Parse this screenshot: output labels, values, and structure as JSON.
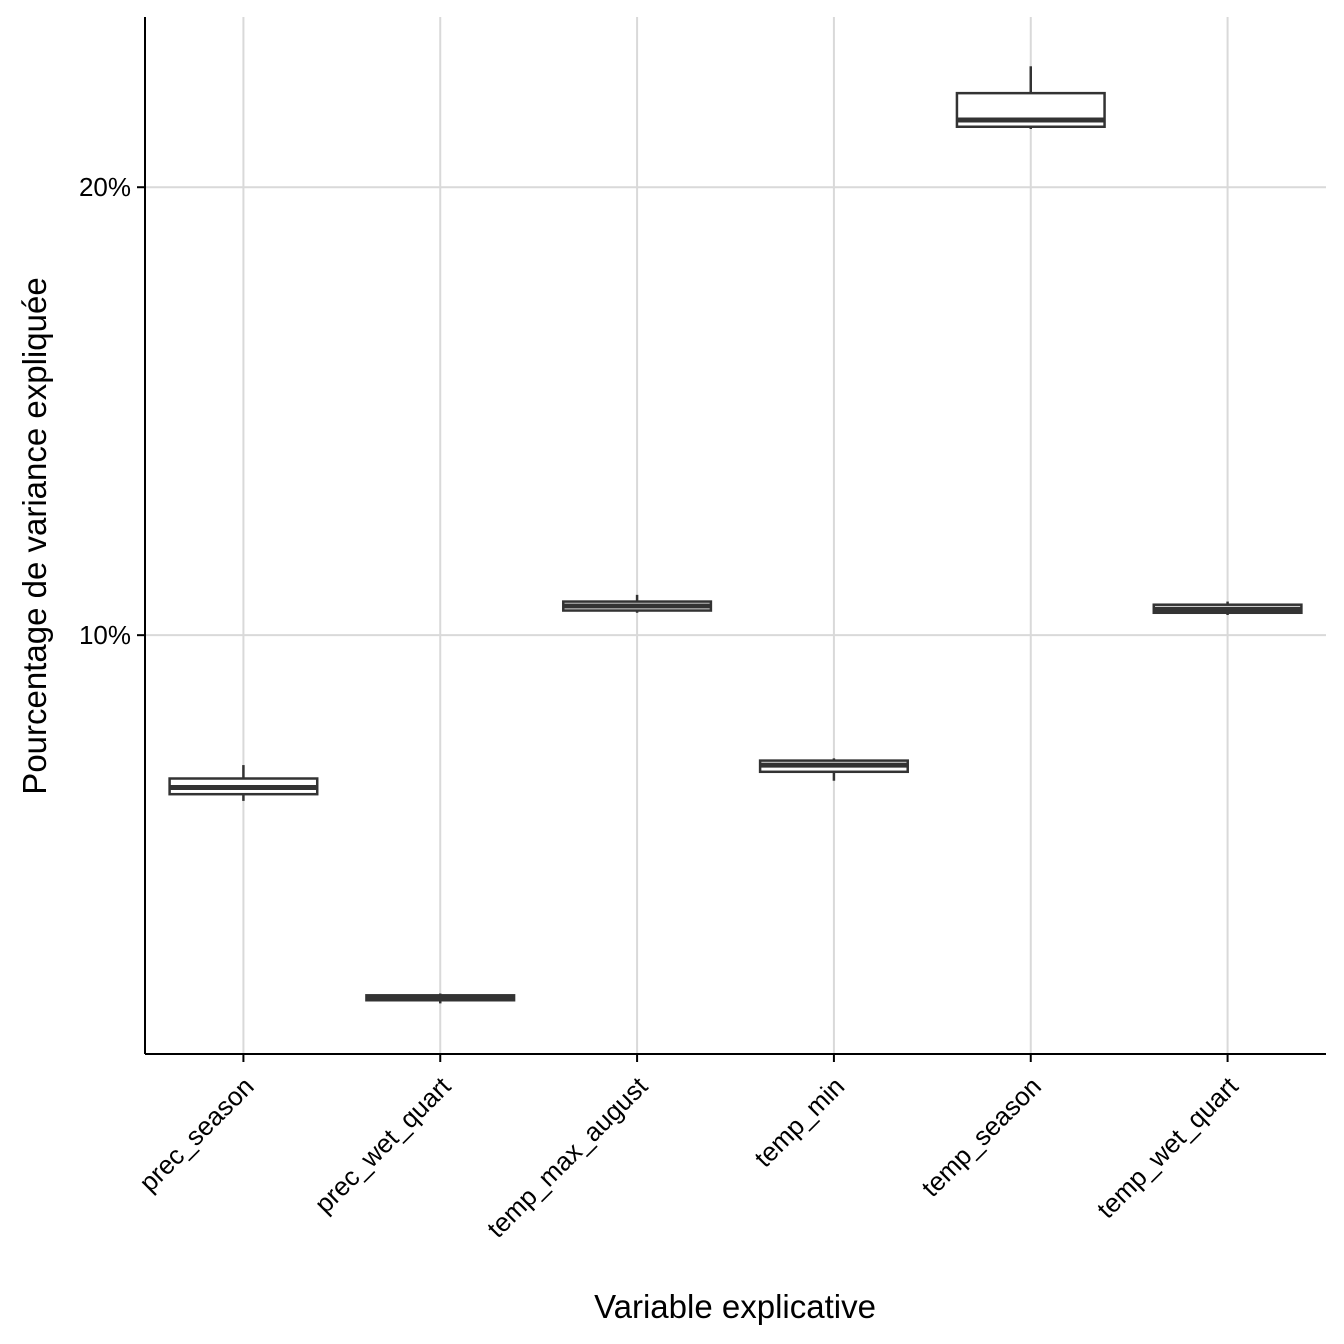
{
  "chart_data": {
    "type": "boxplot",
    "xlabel": "Variable explicative",
    "ylabel": "Pourcentage de variance expliquée",
    "categories": [
      "prec_season",
      "prec_wet_quart",
      "temp_max_august",
      "temp_min",
      "temp_season",
      "temp_wet_quart"
    ],
    "y_ticks": [
      {
        "value": 10,
        "label": "10%"
      },
      {
        "value": 20,
        "label": "20%"
      }
    ],
    "ylim": [
      0.65,
      23.8
    ],
    "grid": true,
    "boxes": [
      {
        "category": "prec_season",
        "whisker_low": 6.3,
        "q1": 6.45,
        "median": 6.6,
        "q3": 6.8,
        "whisker_high": 7.1
      },
      {
        "category": "prec_wet_quart",
        "whisker_low": 1.78,
        "q1": 1.85,
        "median": 1.9,
        "q3": 1.96,
        "whisker_high": 2.0
      },
      {
        "category": "temp_max_august",
        "whisker_low": 10.5,
        "q1": 10.55,
        "median": 10.65,
        "q3": 10.75,
        "whisker_high": 10.9
      },
      {
        "category": "temp_min",
        "whisker_low": 6.75,
        "q1": 6.95,
        "median": 7.1,
        "q3": 7.2,
        "whisker_high": 7.25
      },
      {
        "category": "temp_season",
        "whisker_low": 21.3,
        "q1": 21.35,
        "median": 21.5,
        "q3": 22.1,
        "whisker_high": 22.7
      },
      {
        "category": "temp_wet_quart",
        "whisker_low": 10.45,
        "q1": 10.5,
        "median": 10.58,
        "q3": 10.68,
        "whisker_high": 10.75
      }
    ]
  }
}
